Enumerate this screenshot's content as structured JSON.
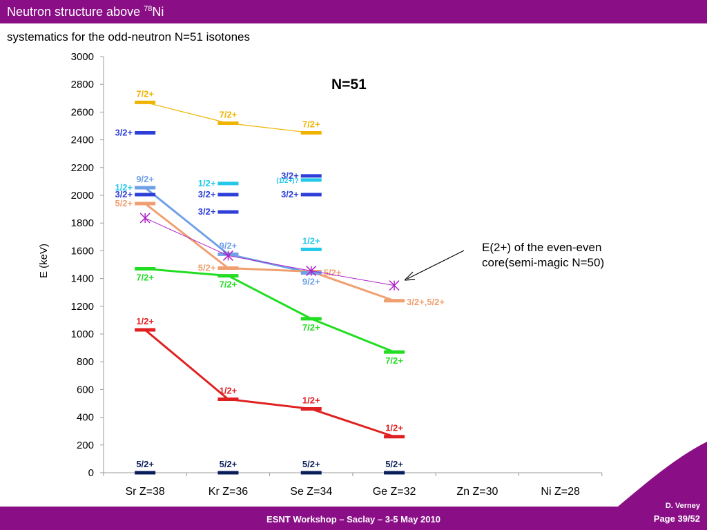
{
  "header": {
    "title_main": "Neutron structure above ",
    "title_sup": "78",
    "title_tail": "Ni",
    "subtitle": "systematics for the odd-neutron N=51 isotones"
  },
  "annotation": {
    "line1": "E(2+) of the even-even",
    "line2": "core(semi-magic N=50)"
  },
  "footer": {
    "text": "ESNT Workshop –   Saclay –   3-5 May 2010",
    "author": "D. Verney",
    "page": "Page 39/52"
  },
  "colors": {
    "brand": "#8a0f86",
    "orange_yellow": "#f0b400",
    "blue": "#2d3fd8",
    "cyan": "#22c8e8",
    "light_blue": "#6fa0e8",
    "salmon": "#f0a070",
    "green": "#22dd22",
    "red": "#e02020",
    "navy": "#0a1e5a",
    "magenta": "#b020c8"
  },
  "chart_data": {
    "type": "scatter",
    "title": "N=51",
    "ylabel": "E (keV)",
    "xlabel": "",
    "ylim": [
      0,
      3000
    ],
    "yticks": [
      0,
      200,
      400,
      600,
      800,
      1000,
      1200,
      1400,
      1600,
      1800,
      2000,
      2200,
      2400,
      2600,
      2800,
      3000
    ],
    "categories": [
      "Sr Z=38",
      "Kr Z=36",
      "Se Z=34",
      "Ge Z=32",
      "Zn Z=30",
      "Ni Z=28"
    ],
    "levels": [
      {
        "cat": 0,
        "energy": 2670,
        "color": "orange_yellow",
        "label": "7/2+",
        "label_pos": "above"
      },
      {
        "cat": 0,
        "energy": 2450,
        "color": "blue",
        "label": "3/2+",
        "label_pos": "left"
      },
      {
        "cat": 0,
        "energy": 2055,
        "color": "cyan",
        "label": "1/2+",
        "label_pos": "left"
      },
      {
        "cat": 0,
        "energy": 2055,
        "color": "light_blue",
        "label": "9/2+",
        "label_pos": "above"
      },
      {
        "cat": 0,
        "energy": 2005,
        "color": "blue",
        "label": "3/2+",
        "label_pos": "left"
      },
      {
        "cat": 0,
        "energy": 1940,
        "color": "salmon",
        "label": "5/2+",
        "label_pos": "left"
      },
      {
        "cat": 0,
        "energy": 1470,
        "color": "green",
        "label": "7/2+",
        "label_pos": "below"
      },
      {
        "cat": 0,
        "energy": 1030,
        "color": "red",
        "label": "1/2+",
        "label_pos": "above"
      },
      {
        "cat": 0,
        "energy": 0,
        "color": "navy",
        "label": "5/2+",
        "label_pos": "above"
      },
      {
        "cat": 1,
        "energy": 2520,
        "color": "orange_yellow",
        "label": "7/2+",
        "label_pos": "above"
      },
      {
        "cat": 1,
        "energy": 2085,
        "color": "cyan",
        "label": "1/2+",
        "label_pos": "left"
      },
      {
        "cat": 1,
        "energy": 2005,
        "color": "blue",
        "label": "3/2+",
        "label_pos": "left"
      },
      {
        "cat": 1,
        "energy": 1880,
        "color": "blue",
        "label": "3/2+",
        "label_pos": "left"
      },
      {
        "cat": 1,
        "energy": 1575,
        "color": "light_blue",
        "label": "9/2+",
        "label_pos": "above"
      },
      {
        "cat": 1,
        "energy": 1475,
        "color": "salmon",
        "label": "5/2+",
        "label_pos": "left"
      },
      {
        "cat": 1,
        "energy": 1420,
        "color": "green",
        "label": "7/2+",
        "label_pos": "below"
      },
      {
        "cat": 1,
        "energy": 530,
        "color": "red",
        "label": "1/2+",
        "label_pos": "above"
      },
      {
        "cat": 1,
        "energy": 0,
        "color": "navy",
        "label": "5/2+",
        "label_pos": "above"
      },
      {
        "cat": 2,
        "energy": 2450,
        "color": "orange_yellow",
        "label": "7/2+",
        "label_pos": "above"
      },
      {
        "cat": 2,
        "energy": 2140,
        "color": "blue",
        "label": "3/2+",
        "label_pos": "left"
      },
      {
        "cat": 2,
        "energy": 2110,
        "color": "cyan",
        "label": "(1/2+)?",
        "label_pos": "left"
      },
      {
        "cat": 2,
        "energy": 2005,
        "color": "blue",
        "label": "3/2+",
        "label_pos": "left"
      },
      {
        "cat": 2,
        "energy": 1610,
        "color": "cyan",
        "label": "1/2+",
        "label_pos": "above"
      },
      {
        "cat": 2,
        "energy": 1450,
        "color": "salmon",
        "label": "5/2+",
        "label_pos": "right"
      },
      {
        "cat": 2,
        "energy": 1440,
        "color": "light_blue",
        "label": "9/2+",
        "label_pos": "below"
      },
      {
        "cat": 2,
        "energy": 1110,
        "color": "green",
        "label": "7/2+",
        "label_pos": "below"
      },
      {
        "cat": 2,
        "energy": 460,
        "color": "red",
        "label": "1/2+",
        "label_pos": "above"
      },
      {
        "cat": 2,
        "energy": 0,
        "color": "navy",
        "label": "5/2+",
        "label_pos": "above"
      },
      {
        "cat": 3,
        "energy": 1240,
        "color": "salmon",
        "label": "3/2+,5/2+",
        "label_pos": "right"
      },
      {
        "cat": 3,
        "energy": 870,
        "color": "green",
        "label": "7/2+",
        "label_pos": "below"
      },
      {
        "cat": 3,
        "energy": 260,
        "color": "red",
        "label": "1/2+",
        "label_pos": "above"
      },
      {
        "cat": 3,
        "energy": 0,
        "color": "navy",
        "label": "5/2+",
        "label_pos": "above"
      }
    ],
    "series": [
      {
        "color": "orange_yellow",
        "width": 1.2,
        "points": [
          [
            0,
            2670
          ],
          [
            1,
            2520
          ],
          [
            2,
            2450
          ]
        ]
      },
      {
        "color": "light_blue",
        "width": 3,
        "points": [
          [
            0,
            2055
          ],
          [
            1,
            1575
          ],
          [
            2,
            1440
          ]
        ]
      },
      {
        "color": "salmon",
        "width": 3,
        "points": [
          [
            0,
            1940
          ],
          [
            1,
            1475
          ],
          [
            2,
            1450
          ],
          [
            3,
            1240
          ]
        ]
      },
      {
        "color": "green",
        "width": 3,
        "points": [
          [
            0,
            1470
          ],
          [
            1,
            1420
          ],
          [
            2,
            1110
          ],
          [
            3,
            870
          ]
        ]
      },
      {
        "color": "red",
        "width": 3,
        "points": [
          [
            0,
            1030
          ],
          [
            1,
            530
          ],
          [
            2,
            460
          ],
          [
            3,
            260
          ]
        ]
      }
    ],
    "core_2plus": {
      "color": "magenta",
      "points": [
        [
          0,
          1836
        ],
        [
          1,
          1565
        ],
        [
          2,
          1455
        ],
        [
          3,
          1350
        ]
      ]
    }
  }
}
